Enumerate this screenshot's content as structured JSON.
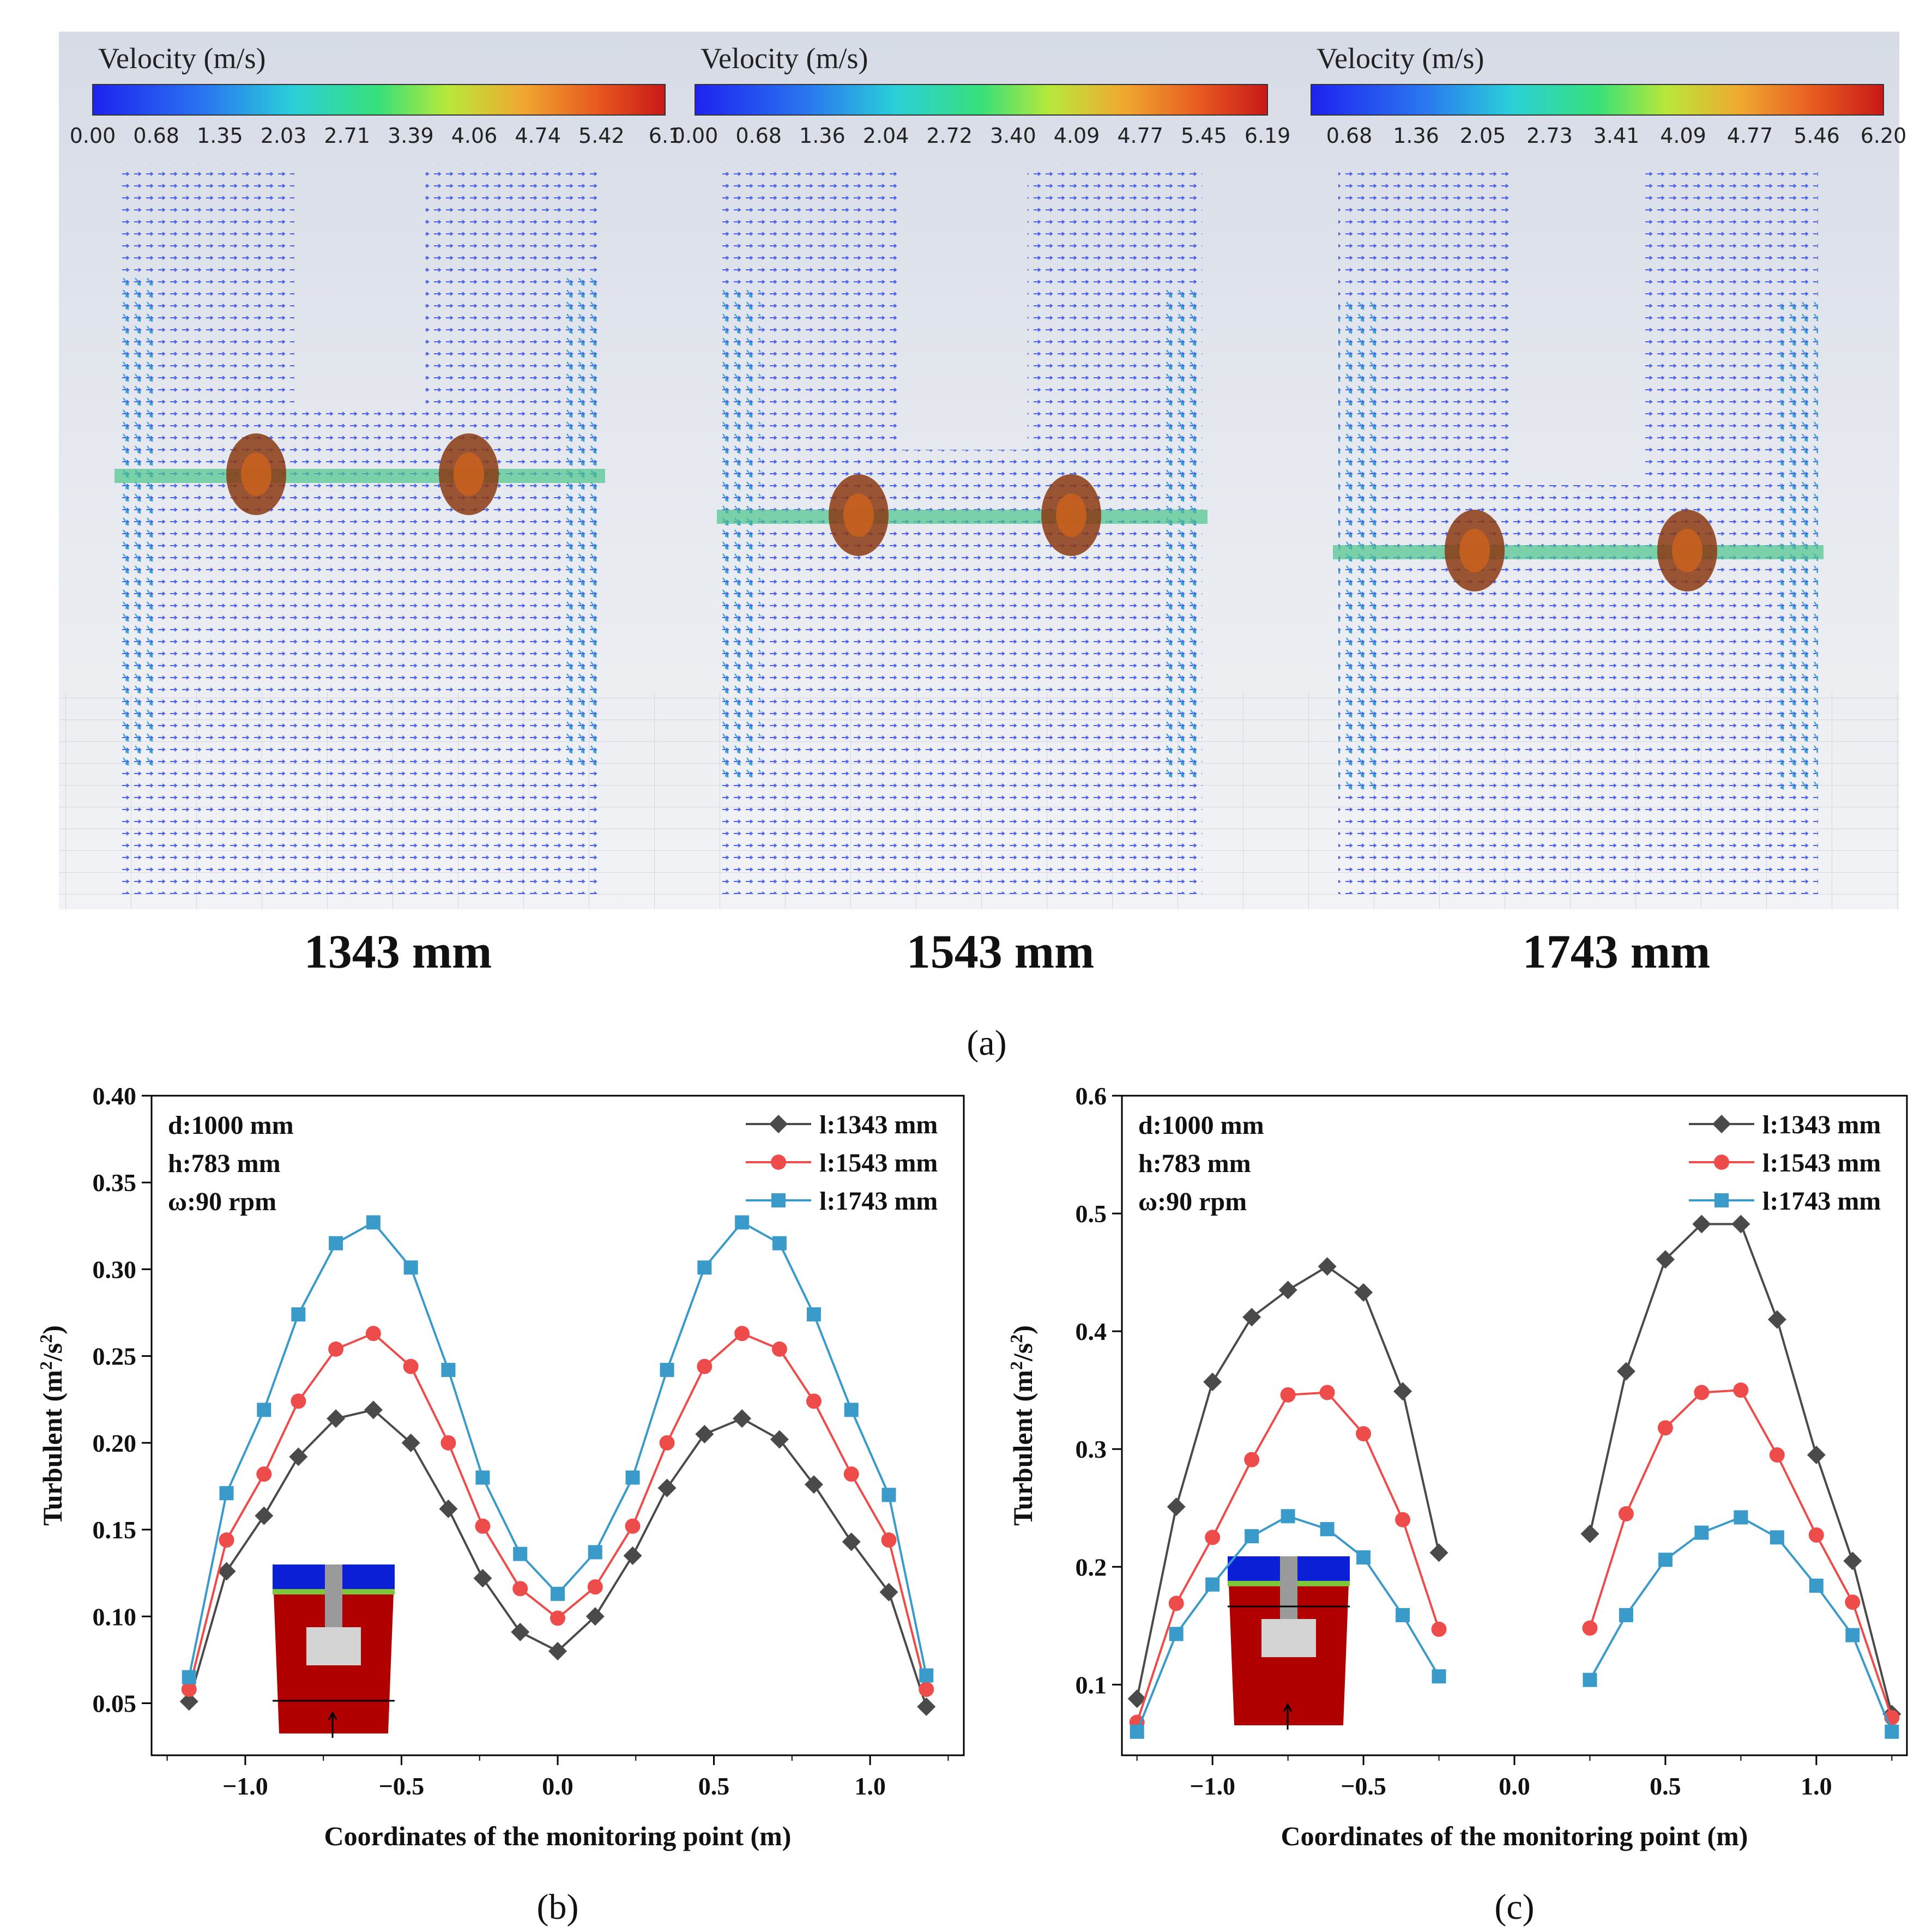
{
  "panel_a": {
    "label": "(a)",
    "colorbar_title": "Velocity (m/s)",
    "cases": [
      {
        "label": "1343 mm",
        "colorbar_ticks": [
          "0.00",
          "0.68",
          "1.35",
          "2.03",
          "2.71",
          "3.39",
          "4.06",
          "4.74",
          "5.42",
          "6.1"
        ]
      },
      {
        "label": "1543 mm",
        "colorbar_ticks": [
          "0.00",
          "0.68",
          "1.36",
          "2.04",
          "2.72",
          "3.40",
          "4.09",
          "4.77",
          "5.45",
          "6.19"
        ]
      },
      {
        "label": "1743 mm",
        "colorbar_ticks": [
          "0.68",
          "1.36",
          "2.05",
          "2.73",
          "3.41",
          "4.09",
          "4.77",
          "5.46",
          "6.20"
        ]
      }
    ]
  },
  "colors": {
    "s1343": "#4a4a4a",
    "s1543": "#ee4b4b",
    "s1743": "#3a9ac9",
    "inset_red": "#b00000",
    "inset_blue": "#0a1fd6",
    "inset_green": "#7ec53a"
  },
  "chart_data": [
    {
      "id": "b",
      "type": "line",
      "panel_label": "(b)",
      "xlabel": "Coordinates of the monitoring point (m)",
      "ylabel": "Turbulent (m",
      "ylabel_exp": "2",
      "ylabel_mid": "/s",
      "ylabel_exp2": "2",
      "ylabel_end": ")",
      "xlim": [
        -1.3,
        1.3
      ],
      "ylim": [
        0.02,
        0.4
      ],
      "xticks": [
        -1.0,
        -0.5,
        0.0,
        0.5,
        1.0
      ],
      "xtick_labels": [
        "−1.0",
        "−0.5",
        "0.0",
        "0.5",
        "1.0"
      ],
      "yticks": [
        0.05,
        0.1,
        0.15,
        0.2,
        0.25,
        0.3,
        0.35,
        0.4
      ],
      "ytick_labels": [
        "0.05",
        "0.10",
        "0.15",
        "0.20",
        "0.25",
        "0.30",
        "0.35",
        "0.40"
      ],
      "params": [
        "d:1000 mm",
        "h:783 mm",
        "ω:90 rpm"
      ],
      "series": [
        {
          "name": "l:1343 mm",
          "marker": "diamond",
          "color_key": "s1343",
          "segments": [
            [
              [
                -1.18,
                0.051
              ],
              [
                -1.06,
                0.126
              ],
              [
                -0.94,
                0.158
              ],
              [
                -0.83,
                0.192
              ],
              [
                -0.71,
                0.214
              ],
              [
                -0.59,
                0.219
              ],
              [
                -0.47,
                0.2
              ],
              [
                -0.35,
                0.162
              ],
              [
                -0.24,
                0.122
              ],
              [
                -0.12,
                0.091
              ],
              [
                0.0,
                0.08
              ],
              [
                0.12,
                0.1
              ],
              [
                0.24,
                0.135
              ],
              [
                0.35,
                0.174
              ],
              [
                0.47,
                0.205
              ],
              [
                0.59,
                0.214
              ],
              [
                0.71,
                0.202
              ],
              [
                0.82,
                0.176
              ],
              [
                0.94,
                0.143
              ],
              [
                1.06,
                0.114
              ],
              [
                1.18,
                0.048
              ]
            ]
          ]
        },
        {
          "name": "l:1543 mm",
          "marker": "circle",
          "color_key": "s1543",
          "segments": [
            [
              [
                -1.18,
                0.058
              ],
              [
                -1.06,
                0.144
              ],
              [
                -0.94,
                0.182
              ],
              [
                -0.83,
                0.224
              ],
              [
                -0.71,
                0.254
              ],
              [
                -0.59,
                0.263
              ],
              [
                -0.47,
                0.244
              ],
              [
                -0.35,
                0.2
              ],
              [
                -0.24,
                0.152
              ],
              [
                -0.12,
                0.116
              ],
              [
                0.0,
                0.099
              ],
              [
                0.12,
                0.117
              ],
              [
                0.24,
                0.152
              ],
              [
                0.35,
                0.2
              ],
              [
                0.47,
                0.244
              ],
              [
                0.59,
                0.263
              ],
              [
                0.71,
                0.254
              ],
              [
                0.82,
                0.224
              ],
              [
                0.94,
                0.182
              ],
              [
                1.06,
                0.144
              ],
              [
                1.18,
                0.058
              ]
            ]
          ]
        },
        {
          "name": "l:1743 mm",
          "marker": "square",
          "color_key": "s1743",
          "segments": [
            [
              [
                -1.18,
                0.065
              ],
              [
                -1.06,
                0.171
              ],
              [
                -0.94,
                0.219
              ],
              [
                -0.83,
                0.274
              ],
              [
                -0.71,
                0.315
              ],
              [
                -0.59,
                0.327
              ],
              [
                -0.47,
                0.301
              ],
              [
                -0.35,
                0.242
              ],
              [
                -0.24,
                0.18
              ],
              [
                -0.12,
                0.136
              ],
              [
                0.0,
                0.113
              ],
              [
                0.12,
                0.137
              ],
              [
                0.24,
                0.18
              ],
              [
                0.35,
                0.242
              ],
              [
                0.47,
                0.301
              ],
              [
                0.59,
                0.327
              ],
              [
                0.71,
                0.315
              ],
              [
                0.82,
                0.274
              ],
              [
                0.94,
                0.219
              ],
              [
                1.06,
                0.17
              ],
              [
                1.18,
                0.066
              ]
            ]
          ]
        }
      ]
    },
    {
      "id": "c",
      "type": "line",
      "panel_label": "(c)",
      "xlabel": "Coordinates of the monitoring point (m)",
      "ylabel": "Turbulent (m",
      "ylabel_exp": "2",
      "ylabel_mid": "/s",
      "ylabel_exp2": "2",
      "ylabel_end": ")",
      "xlim": [
        -1.3,
        1.3
      ],
      "ylim": [
        0.04,
        0.6
      ],
      "xticks": [
        -1.0,
        -0.5,
        0.0,
        0.5,
        1.0
      ],
      "xtick_labels": [
        "−1.0",
        "−0.5",
        "0.0",
        "0.5",
        "1.0"
      ],
      "yticks": [
        0.1,
        0.2,
        0.3,
        0.4,
        0.5,
        0.6
      ],
      "ytick_labels": [
        "0.1",
        "0.2",
        "0.3",
        "0.4",
        "0.5",
        "0.6"
      ],
      "params": [
        "d:1000 mm",
        "h:783 mm",
        "ω:90 rpm"
      ],
      "series": [
        {
          "name": "l:1343 mm",
          "marker": "diamond",
          "color_key": "s1343",
          "segments": [
            [
              [
                -1.25,
                0.088
              ],
              [
                -1.12,
                0.251
              ],
              [
                -1.0,
                0.357
              ],
              [
                -0.87,
                0.412
              ],
              [
                -0.75,
                0.435
              ],
              [
                -0.62,
                0.455
              ],
              [
                -0.5,
                0.433
              ],
              [
                -0.37,
                0.349
              ],
              [
                -0.25,
                0.212
              ]
            ],
            [
              [
                0.25,
                0.228
              ],
              [
                0.37,
                0.366
              ],
              [
                0.5,
                0.461
              ],
              [
                0.62,
                0.491
              ],
              [
                0.75,
                0.491
              ],
              [
                0.87,
                0.41
              ],
              [
                1.0,
                0.295
              ],
              [
                1.12,
                0.205
              ],
              [
                1.25,
                0.075
              ]
            ]
          ]
        },
        {
          "name": "l:1543 mm",
          "marker": "circle",
          "color_key": "s1543",
          "segments": [
            [
              [
                -1.25,
                0.068
              ],
              [
                -1.12,
                0.169
              ],
              [
                -1.0,
                0.225
              ],
              [
                -0.87,
                0.291
              ],
              [
                -0.75,
                0.346
              ],
              [
                -0.62,
                0.348
              ],
              [
                -0.5,
                0.313
              ],
              [
                -0.37,
                0.24
              ],
              [
                -0.25,
                0.147
              ]
            ],
            [
              [
                0.25,
                0.148
              ],
              [
                0.37,
                0.245
              ],
              [
                0.5,
                0.318
              ],
              [
                0.62,
                0.348
              ],
              [
                0.75,
                0.35
              ],
              [
                0.87,
                0.295
              ],
              [
                1.0,
                0.227
              ],
              [
                1.12,
                0.17
              ],
              [
                1.25,
                0.072
              ]
            ]
          ]
        },
        {
          "name": "l:1743 mm",
          "marker": "square",
          "color_key": "s1743",
          "segments": [
            [
              [
                -1.25,
                0.06
              ],
              [
                -1.12,
                0.143
              ],
              [
                -1.0,
                0.185
              ],
              [
                -0.87,
                0.226
              ],
              [
                -0.75,
                0.243
              ],
              [
                -0.62,
                0.232
              ],
              [
                -0.5,
                0.208
              ],
              [
                -0.37,
                0.159
              ],
              [
                -0.25,
                0.107
              ]
            ],
            [
              [
                0.25,
                0.104
              ],
              [
                0.37,
                0.159
              ],
              [
                0.5,
                0.206
              ],
              [
                0.62,
                0.229
              ],
              [
                0.75,
                0.242
              ],
              [
                0.87,
                0.225
              ],
              [
                1.0,
                0.184
              ],
              [
                1.12,
                0.142
              ],
              [
                1.25,
                0.06
              ]
            ]
          ]
        }
      ]
    }
  ]
}
